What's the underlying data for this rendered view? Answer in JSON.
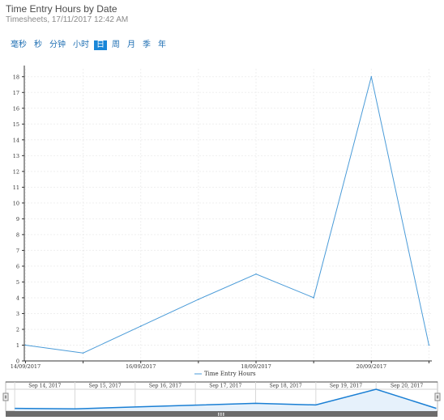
{
  "header": {
    "title": "Time Entry Hours by Date",
    "subtitle": "Timesheets, 17/11/2017 12:42 AM"
  },
  "zoom_options": [
    {
      "label": "毫秒",
      "active": false
    },
    {
      "label": "秒",
      "active": false
    },
    {
      "label": "分钟",
      "active": false
    },
    {
      "label": "小时",
      "active": false
    },
    {
      "label": "日",
      "active": true
    },
    {
      "label": "周",
      "active": false
    },
    {
      "label": "月",
      "active": false
    },
    {
      "label": "季",
      "active": false
    },
    {
      "label": "年",
      "active": false
    }
  ],
  "colors": {
    "series": "#4a9bd8",
    "axis": "#333333",
    "grid": "#efefef",
    "navigator_fill": "#e6f1fb",
    "navigator_line": "#1a7fd4",
    "scrollbar": "#6b6b6b"
  },
  "chart_data": {
    "type": "line",
    "title": "Time Entry Hours by Date",
    "series": [
      {
        "name": "Time Entry Hours",
        "x": [
          "2017-09-14",
          "2017-09-15",
          "2017-09-16",
          "2017-09-17",
          "2017-09-18",
          "2017-09-19",
          "2017-09-20",
          "2017-09-21"
        ],
        "values": [
          1,
          0.5,
          2.2,
          3.9,
          5.5,
          4,
          18,
          1
        ]
      }
    ],
    "x_ticks": [
      "14/09/2017",
      "16/09/2017",
      "18/09/2017",
      "20/09/2017"
    ],
    "ylim": [
      0,
      18.5
    ],
    "y_ticks": [
      0,
      1,
      2,
      3,
      4,
      5,
      6,
      7,
      8,
      9,
      10,
      11,
      12,
      13,
      14,
      15,
      16,
      17,
      18
    ],
    "legend": {
      "position": "bottom-center",
      "label": "Time Entry Hours"
    },
    "grid": true,
    "navigator_labels": [
      "Sep 14, 2017",
      "Sep 15, 2017",
      "Sep 16, 2017",
      "Sep 17, 2017",
      "Sep 18, 2017",
      "Sep 19, 2017",
      "Sep 20, 2017"
    ],
    "navigator_handle_icon": "grip-icon"
  }
}
